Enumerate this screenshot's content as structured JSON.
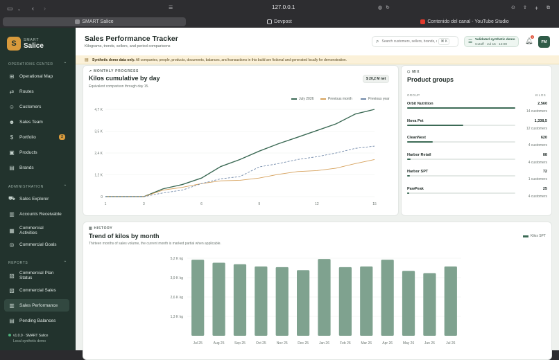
{
  "browser": {
    "url": "127.0.0.1",
    "tabs": [
      {
        "label": "SMART Salice",
        "active": true
      },
      {
        "label": "Devpost",
        "active": false
      },
      {
        "label": "Contenido del canal - YouTube Studio",
        "active": false
      }
    ]
  },
  "sidebar": {
    "brand_small": "SMART",
    "brand_big": "Salice",
    "logo_letter": "S",
    "sections": [
      {
        "title": "OPERATIONS CENTER",
        "items": [
          {
            "label": "Operational Map",
            "icon": "map-icon"
          },
          {
            "label": "Routes",
            "icon": "route-icon"
          },
          {
            "label": "Customers",
            "icon": "users-icon"
          },
          {
            "label": "Sales Team",
            "icon": "team-icon"
          },
          {
            "label": "Portfolio",
            "icon": "dollar-icon",
            "badge": "2"
          },
          {
            "label": "Products",
            "icon": "box-icon"
          },
          {
            "label": "Brands",
            "icon": "tag-icon"
          }
        ]
      },
      {
        "title": "ADMINISTRATION",
        "items": [
          {
            "label": "Sales Explorer",
            "icon": "cart-icon"
          },
          {
            "label": "Accounts Receivable",
            "icon": "wallet-icon"
          },
          {
            "label": "Commercial Activities",
            "icon": "clipboard-icon"
          },
          {
            "label": "Commercial Goals",
            "icon": "target-icon"
          }
        ]
      },
      {
        "title": "REPORTS",
        "items": [
          {
            "label": "Commercial Plan Status",
            "icon": "plan-icon"
          },
          {
            "label": "Commercial Sales",
            "icon": "report-icon"
          },
          {
            "label": "Sales Performance",
            "icon": "chart-icon",
            "active": true
          },
          {
            "label": "Pending Balances",
            "icon": "balance-icon"
          }
        ]
      }
    ],
    "version": "v1.0.0 · SMART Salice",
    "version_sub": "Local synthetic demo"
  },
  "header": {
    "title": "Sales Performance Tracker",
    "subtitle": "Kilograms, trends, sellers, and period comparisons",
    "search_placeholder": "Search customers, sellers, brands, or",
    "search_shortcut": "⌘ K",
    "validated_line1": "Validated synthetic demo",
    "validated_line2": "Cutoff · Jul 15 · 12:00",
    "notif_count": "1",
    "avatar": "FM"
  },
  "banner": {
    "bold": "Synthetic demo data only.",
    "text": " All companies, people, products, documents, balances, and transactions in this build are fictional and generated locally for demonstration."
  },
  "progress_card": {
    "eyebrow": "MONTHLY PROGRESS",
    "title": "Kilos cumulative by day",
    "subtitle": "Equivalent comparison through day 15.",
    "pill": "$ 20,2 M net",
    "legend": [
      "July 2026",
      "Previous month",
      "Previous year"
    ]
  },
  "mix_card": {
    "eyebrow": "MIX",
    "title": "Product groups",
    "col_group": "GROUP",
    "col_kilos": "KILOS",
    "groups": [
      {
        "name": "Orbit Nutrition",
        "value": "2,560",
        "customers": "14 customers",
        "share": 1.0
      },
      {
        "name": "Nova Pet",
        "value": "1,338,5",
        "customers": "12 customers",
        "share": 0.52
      },
      {
        "name": "CleanNest",
        "value": "620",
        "customers": "4 customers",
        "share": 0.24
      },
      {
        "name": "Harbor Retail",
        "value": "88",
        "customers": "4 customers",
        "share": 0.035
      },
      {
        "name": "Harbor SPT",
        "value": "72",
        "customers": "1 customers",
        "share": 0.028
      },
      {
        "name": "PawPeak",
        "value": "25",
        "customers": "4 customers",
        "share": 0.01
      }
    ]
  },
  "history_card": {
    "eyebrow": "HISTORY",
    "title": "Trend of kilos by month",
    "subtitle": "Thirteen months of sales volume, the current month is marked partial when applicable.",
    "legend": "Kilos SPT"
  },
  "chart_data": [
    {
      "type": "line",
      "x": [
        1,
        2,
        3,
        4,
        5,
        6,
        7,
        8,
        9,
        10,
        11,
        12,
        13,
        14,
        15
      ],
      "x_ticks": [
        "1",
        "3",
        "6",
        "9",
        "12",
        "15"
      ],
      "y_ticks": [
        "0",
        "1,2 K",
        "2,4 K",
        "3,5 K",
        "4,7 K"
      ],
      "ylim": [
        0,
        4700
      ],
      "series": [
        {
          "name": "July 2026",
          "color": "#3c6a55",
          "dash": false,
          "values": [
            0,
            0,
            0,
            420,
            650,
            1000,
            1620,
            2000,
            2450,
            2850,
            3200,
            3560,
            3920,
            4450,
            4700
          ]
        },
        {
          "name": "Previous month",
          "color": "#d6a15b",
          "dash": false,
          "values": [
            0,
            0,
            0,
            350,
            500,
            700,
            850,
            880,
            1000,
            1200,
            1350,
            1400,
            1530,
            1780,
            2000
          ]
        },
        {
          "name": "Previous year",
          "color": "#6f87a8",
          "dash": true,
          "values": [
            0,
            0,
            0,
            200,
            350,
            700,
            960,
            1080,
            1600,
            1780,
            2000,
            2150,
            2350,
            2600,
            2720
          ]
        }
      ]
    },
    {
      "type": "bar",
      "categories": [
        "Jul 25",
        "Aug 25",
        "Sep 25",
        "Oct 25",
        "Nov 25",
        "Dec 25",
        "Jan 26",
        "Feb 26",
        "Mar 26",
        "Apr 26",
        "May 26",
        "Jun 26",
        "Jul 26"
      ],
      "values": [
        5100,
        4900,
        4800,
        4650,
        4600,
        4400,
        5150,
        4600,
        4650,
        5100,
        4350,
        4200,
        4650
      ],
      "y_ticks": [
        "1,3 K kg",
        "2,6 K kg",
        "3,9 K kg",
        "5,2 K kg"
      ],
      "ylim": [
        0,
        5200
      ],
      "color": "#7fa28f"
    }
  ]
}
